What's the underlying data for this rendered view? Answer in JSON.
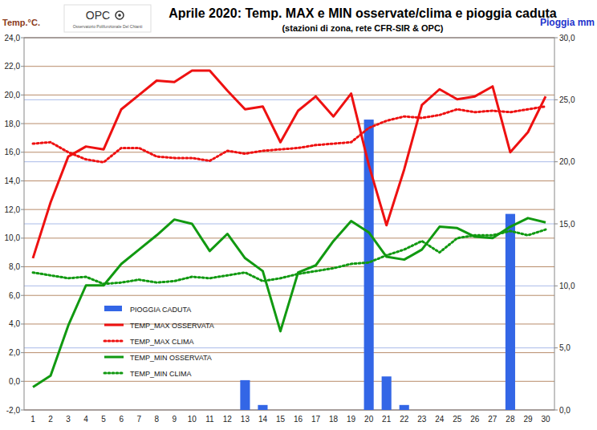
{
  "chart_data": {
    "type": "line",
    "title": "Aprile 2020: Temp. MAX e MIN osservate/clima e pioggia caduta",
    "subtitle": "(stazioni di zona, rete CFR-SIR & OPC)",
    "y_label": "Temp.°C.",
    "y2_label": "Pioggia mm",
    "annotations": [
      "OPC",
      "Osservatorio Polifunzionale Del Chianti"
    ],
    "categories": [
      "1",
      "2",
      "3",
      "4",
      "5",
      "6",
      "7",
      "8",
      "9",
      "10",
      "11",
      "12",
      "13",
      "14",
      "15",
      "16",
      "17",
      "18",
      "19",
      "20",
      "21",
      "22",
      "23",
      "24",
      "25",
      "26",
      "27",
      "28",
      "29",
      "30"
    ],
    "ylim": [
      -2,
      24
    ],
    "yticks": [
      {
        "value": -2,
        "label": "-2,0"
      },
      {
        "value": 0,
        "label": "0,0"
      },
      {
        "value": 2,
        "label": "2,0"
      },
      {
        "value": 4,
        "label": "4,0"
      },
      {
        "value": 6,
        "label": "6,0"
      },
      {
        "value": 8,
        "label": "8,0"
      },
      {
        "value": 10,
        "label": "10,0"
      },
      {
        "value": 12,
        "label": "12,0"
      },
      {
        "value": 14,
        "label": "14,0"
      },
      {
        "value": 16,
        "label": "16,0"
      },
      {
        "value": 18,
        "label": "18,0"
      },
      {
        "value": 20,
        "label": "20,0"
      },
      {
        "value": 22,
        "label": "22,0"
      },
      {
        "value": 24,
        "label": "24,0"
      }
    ],
    "y2lim": [
      0,
      30
    ],
    "y2ticks": [
      {
        "value": 0,
        "label": "0,0"
      },
      {
        "value": 5,
        "label": "5,0"
      },
      {
        "value": 10,
        "label": "10,0"
      },
      {
        "value": 15,
        "label": "15,0"
      },
      {
        "value": 20,
        "label": "20,0"
      },
      {
        "value": 25,
        "label": "25,0"
      },
      {
        "value": 30,
        "label": "30,0"
      }
    ],
    "grid": true,
    "legend": "lower left",
    "series": [
      {
        "name": "PIOGGIA CADUTA",
        "type": "bar",
        "axis": "y2",
        "color": "#3366e6",
        "values": [
          0,
          0,
          0,
          0,
          0,
          0,
          0,
          0,
          0,
          0,
          0,
          0,
          2.4,
          0.4,
          0,
          0,
          0,
          0,
          0,
          23.4,
          2.7,
          0.4,
          0,
          0,
          0,
          0,
          0,
          15.8,
          0,
          0
        ]
      },
      {
        "name": "TEMP_MAX OSSERVATA",
        "type": "line",
        "color": "#ee1111",
        "line_style": "solid",
        "values": [
          8.6,
          12.5,
          15.7,
          16.4,
          16.2,
          19.0,
          20.0,
          21.0,
          20.9,
          21.7,
          21.7,
          20.3,
          19.0,
          19.2,
          16.7,
          18.9,
          19.9,
          18.5,
          20.1,
          15.1,
          10.9,
          14.8,
          19.3,
          20.4,
          19.7,
          19.9,
          20.6,
          16.0,
          17.4,
          19.9
        ]
      },
      {
        "name": "TEMP_MAX CLIMA",
        "type": "line",
        "color": "#ee1111",
        "line_style": "dotted",
        "values": [
          16.6,
          16.7,
          16.0,
          15.5,
          15.3,
          16.3,
          16.3,
          15.7,
          15.6,
          15.6,
          15.4,
          16.1,
          15.9,
          16.1,
          16.2,
          16.3,
          16.5,
          16.6,
          16.7,
          17.7,
          18.2,
          18.5,
          18.4,
          18.6,
          19.0,
          18.8,
          18.9,
          18.8,
          19.0,
          19.2
        ]
      },
      {
        "name": "TEMP_MIN OSSERVATA",
        "type": "line",
        "color": "#119911",
        "line_style": "solid",
        "values": [
          -0.4,
          0.4,
          3.9,
          6.7,
          6.7,
          8.2,
          9.2,
          10.2,
          11.3,
          11.0,
          9.1,
          10.3,
          8.6,
          7.7,
          3.5,
          7.6,
          8.1,
          9.8,
          11.2,
          10.4,
          8.7,
          8.5,
          9.2,
          10.8,
          10.7,
          10.1,
          10.0,
          10.8,
          11.4,
          11.1
        ]
      },
      {
        "name": "TEMP_MIN CLIMA",
        "type": "line",
        "color": "#119911",
        "line_style": "dotted",
        "values": [
          7.6,
          7.4,
          7.2,
          7.3,
          6.8,
          6.9,
          7.1,
          6.9,
          7.0,
          7.3,
          7.2,
          7.4,
          7.6,
          7.0,
          7.2,
          7.5,
          7.7,
          7.9,
          8.2,
          8.3,
          8.8,
          9.2,
          9.8,
          9.0,
          10.0,
          10.2,
          10.2,
          10.5,
          10.2,
          10.6
        ]
      }
    ]
  }
}
